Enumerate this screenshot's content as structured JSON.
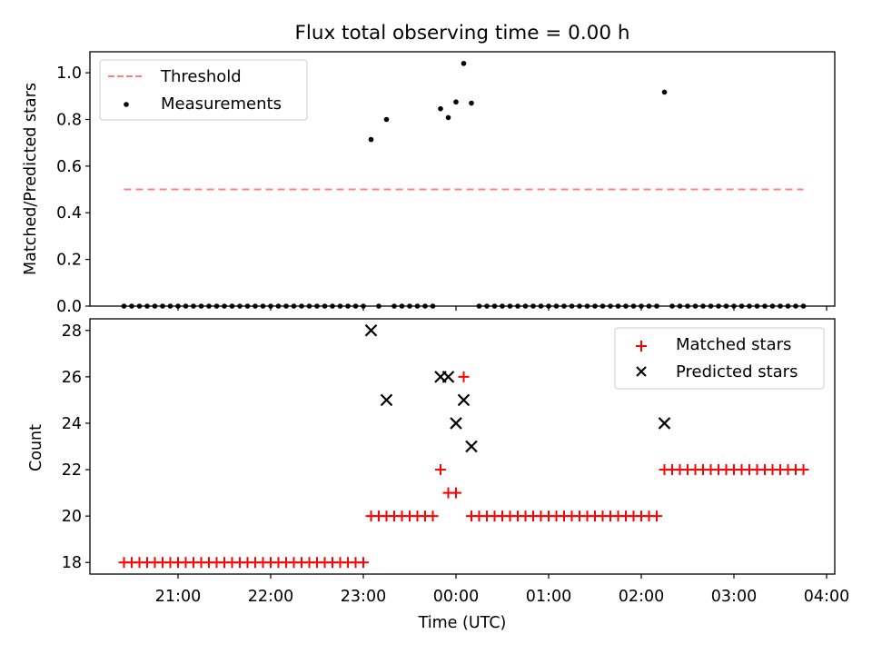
{
  "chart_data": [
    {
      "type": "scatter",
      "title": "Flux total observing time = 0.00 h",
      "xlabel": "",
      "ylabel": "Matched/Predicted stars",
      "ylim": [
        0,
        1.09
      ],
      "yticks": [
        "0.0",
        "0.2",
        "0.4",
        "0.6",
        "0.8",
        "1.0"
      ],
      "legend_position": "upper-left",
      "threshold": {
        "name": "Threshold",
        "value": 0.5,
        "x_start": "20:25",
        "x_end": "03:45",
        "color": "#ff8080"
      },
      "series": [
        {
          "name": "Measurements",
          "color": "#000000",
          "points": [
            [
              "20:25",
              0
            ],
            [
              "20:30",
              0
            ],
            [
              "20:35",
              0
            ],
            [
              "20:40",
              0
            ],
            [
              "20:45",
              0
            ],
            [
              "20:50",
              0
            ],
            [
              "20:55",
              0
            ],
            [
              "21:00",
              0
            ],
            [
              "21:05",
              0
            ],
            [
              "21:10",
              0
            ],
            [
              "21:15",
              0
            ],
            [
              "21:20",
              0
            ],
            [
              "21:25",
              0
            ],
            [
              "21:30",
              0
            ],
            [
              "21:35",
              0
            ],
            [
              "21:40",
              0
            ],
            [
              "21:45",
              0
            ],
            [
              "21:50",
              0
            ],
            [
              "21:55",
              0
            ],
            [
              "22:00",
              0
            ],
            [
              "22:05",
              0
            ],
            [
              "22:10",
              0
            ],
            [
              "22:15",
              0
            ],
            [
              "22:20",
              0
            ],
            [
              "22:25",
              0
            ],
            [
              "22:30",
              0
            ],
            [
              "22:35",
              0
            ],
            [
              "22:40",
              0
            ],
            [
              "22:45",
              0
            ],
            [
              "22:50",
              0
            ],
            [
              "22:55",
              0
            ],
            [
              "23:00",
              0
            ],
            [
              "23:05",
              0.714
            ],
            [
              "23:10",
              0
            ],
            [
              "23:15",
              0.8
            ],
            [
              "23:20",
              0
            ],
            [
              "23:25",
              0
            ],
            [
              "23:30",
              0
            ],
            [
              "23:35",
              0
            ],
            [
              "23:40",
              0
            ],
            [
              "23:45",
              0
            ],
            [
              "23:50",
              0.846
            ],
            [
              "23:55",
              0.808
            ],
            [
              "00:00",
              0.875
            ],
            [
              "00:05",
              1.04
            ],
            [
              "00:10",
              0.87
            ],
            [
              "00:15",
              0
            ],
            [
              "00:20",
              0
            ],
            [
              "00:25",
              0
            ],
            [
              "00:30",
              0
            ],
            [
              "00:35",
              0
            ],
            [
              "00:40",
              0
            ],
            [
              "00:45",
              0
            ],
            [
              "00:50",
              0
            ],
            [
              "00:55",
              0
            ],
            [
              "01:00",
              0
            ],
            [
              "01:05",
              0
            ],
            [
              "01:10",
              0
            ],
            [
              "01:15",
              0
            ],
            [
              "01:20",
              0
            ],
            [
              "01:25",
              0
            ],
            [
              "01:30",
              0
            ],
            [
              "01:35",
              0
            ],
            [
              "01:40",
              0
            ],
            [
              "01:45",
              0
            ],
            [
              "01:50",
              0
            ],
            [
              "01:55",
              0
            ],
            [
              "02:00",
              0
            ],
            [
              "02:05",
              0
            ],
            [
              "02:10",
              0
            ],
            [
              "02:15",
              0.917
            ],
            [
              "02:20",
              0
            ],
            [
              "02:25",
              0
            ],
            [
              "02:30",
              0
            ],
            [
              "02:35",
              0
            ],
            [
              "02:40",
              0
            ],
            [
              "02:45",
              0
            ],
            [
              "02:50",
              0
            ],
            [
              "02:55",
              0
            ],
            [
              "03:00",
              0
            ],
            [
              "03:05",
              0
            ],
            [
              "03:10",
              0
            ],
            [
              "03:15",
              0
            ],
            [
              "03:20",
              0
            ],
            [
              "03:25",
              0
            ],
            [
              "03:30",
              0
            ],
            [
              "03:35",
              0
            ],
            [
              "03:40",
              0
            ],
            [
              "03:45",
              0
            ]
          ]
        }
      ]
    },
    {
      "type": "scatter",
      "title": "",
      "xlabel": "Time (UTC)",
      "ylabel": "Count",
      "ylim": [
        17.5,
        28.5
      ],
      "yticks": [
        "18",
        "20",
        "22",
        "24",
        "26",
        "28"
      ],
      "xticks": [
        "21:00",
        "22:00",
        "23:00",
        "00:00",
        "01:00",
        "02:00",
        "03:00",
        "04:00"
      ],
      "legend_position": "upper-right",
      "series": [
        {
          "name": "Matched stars",
          "color": "#ff0000",
          "marker": "plus",
          "points": [
            [
              "20:25",
              18
            ],
            [
              "20:30",
              18
            ],
            [
              "20:35",
              18
            ],
            [
              "20:40",
              18
            ],
            [
              "20:45",
              18
            ],
            [
              "20:50",
              18
            ],
            [
              "20:55",
              18
            ],
            [
              "21:00",
              18
            ],
            [
              "21:05",
              18
            ],
            [
              "21:10",
              18
            ],
            [
              "21:15",
              18
            ],
            [
              "21:20",
              18
            ],
            [
              "21:25",
              18
            ],
            [
              "21:30",
              18
            ],
            [
              "21:35",
              18
            ],
            [
              "21:40",
              18
            ],
            [
              "21:45",
              18
            ],
            [
              "21:50",
              18
            ],
            [
              "21:55",
              18
            ],
            [
              "22:00",
              18
            ],
            [
              "22:05",
              18
            ],
            [
              "22:10",
              18
            ],
            [
              "22:15",
              18
            ],
            [
              "22:20",
              18
            ],
            [
              "22:25",
              18
            ],
            [
              "22:30",
              18
            ],
            [
              "22:35",
              18
            ],
            [
              "22:40",
              18
            ],
            [
              "22:45",
              18
            ],
            [
              "22:50",
              18
            ],
            [
              "22:55",
              18
            ],
            [
              "23:00",
              18
            ],
            [
              "23:05",
              20
            ],
            [
              "23:10",
              20
            ],
            [
              "23:15",
              20
            ],
            [
              "23:20",
              20
            ],
            [
              "23:25",
              20
            ],
            [
              "23:30",
              20
            ],
            [
              "23:35",
              20
            ],
            [
              "23:40",
              20
            ],
            [
              "23:45",
              20
            ],
            [
              "23:50",
              22
            ],
            [
              "23:55",
              21
            ],
            [
              "00:00",
              21
            ],
            [
              "00:05",
              26
            ],
            [
              "00:10",
              20
            ],
            [
              "00:15",
              20
            ],
            [
              "00:20",
              20
            ],
            [
              "00:25",
              20
            ],
            [
              "00:30",
              20
            ],
            [
              "00:35",
              20
            ],
            [
              "00:40",
              20
            ],
            [
              "00:45",
              20
            ],
            [
              "00:50",
              20
            ],
            [
              "00:55",
              20
            ],
            [
              "01:00",
              20
            ],
            [
              "01:05",
              20
            ],
            [
              "01:10",
              20
            ],
            [
              "01:15",
              20
            ],
            [
              "01:20",
              20
            ],
            [
              "01:25",
              20
            ],
            [
              "01:30",
              20
            ],
            [
              "01:35",
              20
            ],
            [
              "01:40",
              20
            ],
            [
              "01:45",
              20
            ],
            [
              "01:50",
              20
            ],
            [
              "01:55",
              20
            ],
            [
              "02:00",
              20
            ],
            [
              "02:05",
              20
            ],
            [
              "02:10",
              20
            ],
            [
              "02:15",
              22
            ],
            [
              "02:20",
              22
            ],
            [
              "02:25",
              22
            ],
            [
              "02:30",
              22
            ],
            [
              "02:35",
              22
            ],
            [
              "02:40",
              22
            ],
            [
              "02:45",
              22
            ],
            [
              "02:50",
              22
            ],
            [
              "02:55",
              22
            ],
            [
              "03:00",
              22
            ],
            [
              "03:05",
              22
            ],
            [
              "03:10",
              22
            ],
            [
              "03:15",
              22
            ],
            [
              "03:20",
              22
            ],
            [
              "03:25",
              22
            ],
            [
              "03:30",
              22
            ],
            [
              "03:35",
              22
            ],
            [
              "03:40",
              22
            ],
            [
              "03:45",
              22
            ]
          ]
        },
        {
          "name": "Predicted stars",
          "color": "#000000",
          "marker": "x",
          "points": [
            [
              "23:05",
              28
            ],
            [
              "23:15",
              25
            ],
            [
              "23:50",
              26
            ],
            [
              "23:55",
              26
            ],
            [
              "00:00",
              24
            ],
            [
              "00:05",
              25
            ],
            [
              "00:10",
              23
            ],
            [
              "02:15",
              24
            ]
          ]
        }
      ]
    }
  ]
}
